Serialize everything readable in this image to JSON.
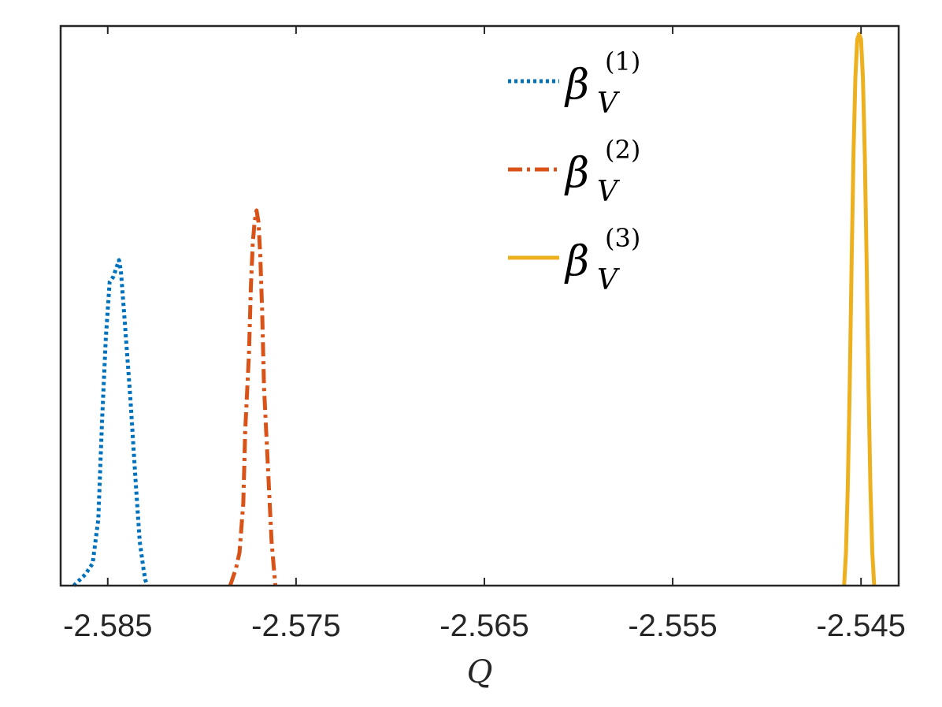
{
  "chart_data": {
    "type": "line",
    "title": "",
    "xlabel": "Q",
    "ylabel": "",
    "xlim": [
      -2.5875,
      -2.543
    ],
    "ylim": [
      0,
      1.0
    ],
    "xticks": [
      -2.585,
      -2.575,
      -2.565,
      -2.555,
      -2.545
    ],
    "xtick_labels": [
      "-2.585",
      "-2.575",
      "-2.565",
      "-2.555",
      "-2.545"
    ],
    "yticks_visible": false,
    "grid": false,
    "legend_placement": "top-center",
    "series": [
      {
        "name_symbol": "β",
        "name_superscript": "(1)",
        "name_subscript": "V",
        "color": "#0072BD",
        "line_style": "dotted",
        "x": [
          -2.5868,
          -2.5862,
          -2.5858,
          -2.5855,
          -2.5853,
          -2.5851,
          -2.5849,
          -2.5847,
          -2.5845,
          -2.5844,
          -2.5843,
          -2.5841,
          -2.5838,
          -2.5835,
          -2.5833,
          -2.5831,
          -2.583,
          -2.5829
        ],
        "y": [
          0.0,
          0.02,
          0.04,
          0.12,
          0.3,
          0.45,
          0.55,
          0.56,
          0.58,
          0.59,
          0.57,
          0.48,
          0.34,
          0.18,
          0.08,
          0.03,
          0.01,
          0.0
        ]
      },
      {
        "name_symbol": "β",
        "name_superscript": "(2)",
        "name_subscript": "V",
        "color": "#D95319",
        "line_style": "dashed",
        "x": [
          -2.5785,
          -2.5782,
          -2.578,
          -2.5778,
          -2.5777,
          -2.5775,
          -2.5774,
          -2.5773,
          -2.5772,
          -2.5771,
          -2.577,
          -2.5769,
          -2.5768,
          -2.5767,
          -2.5765,
          -2.5763,
          -2.5761
        ],
        "y": [
          0.0,
          0.03,
          0.06,
          0.15,
          0.28,
          0.42,
          0.54,
          0.62,
          0.66,
          0.68,
          0.66,
          0.6,
          0.5,
          0.36,
          0.22,
          0.08,
          0.0
        ]
      },
      {
        "name_symbol": "β",
        "name_superscript": "(3)",
        "name_subscript": "V",
        "color": "#EDB120",
        "line_style": "solid",
        "x": [
          -2.5459,
          -2.5458,
          -2.5457,
          -2.5456,
          -2.5455,
          -2.5454,
          -2.5453,
          -2.5452,
          -2.5451,
          -2.545,
          -2.5449,
          -2.5448,
          -2.5447,
          -2.5446,
          -2.5445,
          -2.5444,
          -2.5443
        ],
        "y": [
          0.0,
          0.06,
          0.18,
          0.36,
          0.58,
          0.78,
          0.92,
          0.99,
          1.0,
          0.99,
          0.92,
          0.78,
          0.58,
          0.36,
          0.18,
          0.06,
          0.0
        ]
      }
    ]
  }
}
